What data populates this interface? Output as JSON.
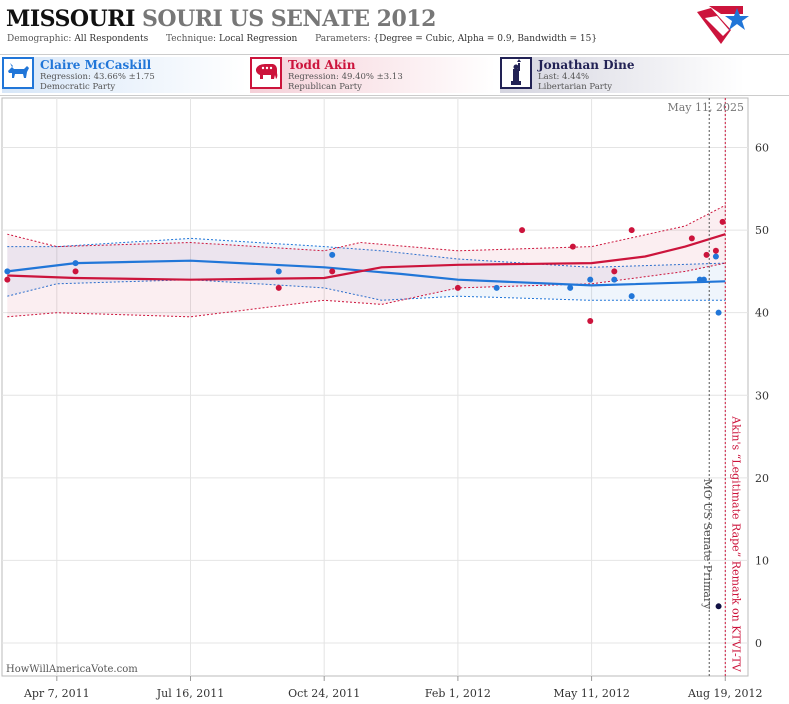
{
  "header": {
    "title_part1": "MISSOURI",
    "title_part2": "SOURI US SENATE 2012",
    "demographic_label": "Demographic:",
    "demographic_value": "All Respondents",
    "technique_label": "Technique:",
    "technique_value": "Local Regression",
    "parameters_label": "Parameters:",
    "parameters_value": "{Degree = Cubic, Alpha = 0.9, Bandwidth = 15}"
  },
  "candidates": [
    {
      "name": "Claire McCaskill",
      "line1": "Regression: 43.66% ±1.75",
      "line2": "Democratic Party",
      "icon": "donkey-icon",
      "color": "#2176d8"
    },
    {
      "name": "Todd Akin",
      "line1": "Regression: 49.40% ±3.13",
      "line2": "Republican Party",
      "icon": "elephant-icon",
      "color": "#cc143c"
    },
    {
      "name": "Jonathan Dine",
      "line1": "Last: 4.44%",
      "line2": "Libertarian Party",
      "icon": "liberty-statue-icon",
      "color": "#222255"
    }
  ],
  "chart_data": {
    "type": "line",
    "x_ticks": [
      "Apr 7, 2011",
      "Jul 16, 2011",
      "Oct 24, 2011",
      "Feb 1, 2012",
      "May 11, 2012",
      "Aug 19, 2012"
    ],
    "x_range": [
      "2011-02-25",
      "2012-09-05"
    ],
    "y_range": [
      -4,
      66
    ],
    "y_ticks": [
      0,
      10,
      20,
      30,
      40,
      50,
      60
    ],
    "grid": true,
    "top_label": "May 11, 2025",
    "credit": "HowWillAmericaVote.com",
    "annotations": [
      {
        "date": "2012-08-07",
        "label": "MO US Senate Primary",
        "color": "#555555"
      },
      {
        "date": "2012-08-19",
        "label": "Akin's “Legitimate Rape” Remark on KTVI-TV",
        "color": "#cc143c"
      }
    ],
    "series": [
      {
        "name": "Claire McCaskill",
        "color": "#2176d8",
        "points": [
          [
            "2011-03-01",
            45
          ],
          [
            "2011-04-21",
            46
          ],
          [
            "2011-09-20",
            45
          ],
          [
            "2011-10-30",
            47
          ],
          [
            "2012-03-01",
            43
          ],
          [
            "2012-04-25",
            43
          ],
          [
            "2012-05-10",
            44
          ],
          [
            "2012-05-28",
            44
          ],
          [
            "2012-06-10",
            42
          ],
          [
            "2012-07-31",
            44
          ],
          [
            "2012-08-03",
            44
          ],
          [
            "2012-08-12",
            46.8
          ],
          [
            "2012-08-14",
            40
          ]
        ],
        "trend": [
          [
            "2011-03-01",
            45
          ],
          [
            "2011-04-21",
            46
          ],
          [
            "2011-07-16",
            46.3
          ],
          [
            "2011-10-24",
            45.5
          ],
          [
            "2011-12-20",
            44.7
          ],
          [
            "2012-02-01",
            44
          ],
          [
            "2012-05-11",
            43.3
          ],
          [
            "2012-08-19",
            43.8
          ]
        ],
        "upper": [
          [
            "2011-03-01",
            48
          ],
          [
            "2011-04-07",
            48
          ],
          [
            "2011-07-16",
            49
          ],
          [
            "2011-10-24",
            48
          ],
          [
            "2011-12-06",
            47.5
          ],
          [
            "2012-02-01",
            46.5
          ],
          [
            "2012-05-11",
            45.5
          ],
          [
            "2012-08-19",
            46
          ]
        ],
        "lower": [
          [
            "2011-03-01",
            42
          ],
          [
            "2011-04-07",
            43.5
          ],
          [
            "2011-07-16",
            44
          ],
          [
            "2011-10-24",
            43
          ],
          [
            "2011-12-06",
            41.5
          ],
          [
            "2012-02-01",
            42
          ],
          [
            "2012-05-11",
            41.5
          ],
          [
            "2012-08-19",
            41.5
          ]
        ]
      },
      {
        "name": "Todd Akin",
        "color": "#cc143c",
        "points": [
          [
            "2011-03-01",
            44
          ],
          [
            "2011-04-21",
            45
          ],
          [
            "2011-09-20",
            43
          ],
          [
            "2011-10-30",
            45
          ],
          [
            "2012-02-01",
            43
          ],
          [
            "2012-03-20",
            50
          ],
          [
            "2012-04-27",
            48
          ],
          [
            "2012-05-10",
            39
          ],
          [
            "2012-05-28",
            45
          ],
          [
            "2012-06-10",
            50
          ],
          [
            "2012-07-25",
            49
          ],
          [
            "2012-08-05",
            47
          ],
          [
            "2012-08-12",
            47.5
          ],
          [
            "2012-08-17",
            51
          ]
        ],
        "trend": [
          [
            "2011-03-01",
            44.5
          ],
          [
            "2011-04-21",
            44.2
          ],
          [
            "2011-07-16",
            44
          ],
          [
            "2011-10-24",
            44.2
          ],
          [
            "2011-12-06",
            45.5
          ],
          [
            "2012-02-01",
            45.8
          ],
          [
            "2012-05-11",
            46
          ],
          [
            "2012-06-20",
            46.8
          ],
          [
            "2012-07-20",
            48
          ],
          [
            "2012-08-19",
            49.5
          ]
        ],
        "upper": [
          [
            "2011-03-01",
            49.5
          ],
          [
            "2011-04-07",
            48
          ],
          [
            "2011-07-16",
            48.5
          ],
          [
            "2011-10-24",
            47.5
          ],
          [
            "2011-11-20",
            48.5
          ],
          [
            "2012-02-01",
            47.5
          ],
          [
            "2012-05-11",
            48
          ],
          [
            "2012-07-20",
            50.5
          ],
          [
            "2012-08-19",
            53
          ]
        ],
        "lower": [
          [
            "2011-03-01",
            39.5
          ],
          [
            "2011-04-07",
            40
          ],
          [
            "2011-07-16",
            39.5
          ],
          [
            "2011-10-24",
            41.5
          ],
          [
            "2011-12-06",
            41
          ],
          [
            "2012-02-01",
            43
          ],
          [
            "2012-05-11",
            43.5
          ],
          [
            "2012-07-20",
            45
          ],
          [
            "2012-08-19",
            46
          ]
        ]
      },
      {
        "name": "Jonathan Dine",
        "color": "#111144",
        "points": [
          [
            "2012-08-14",
            4.44
          ]
        ]
      }
    ]
  }
}
